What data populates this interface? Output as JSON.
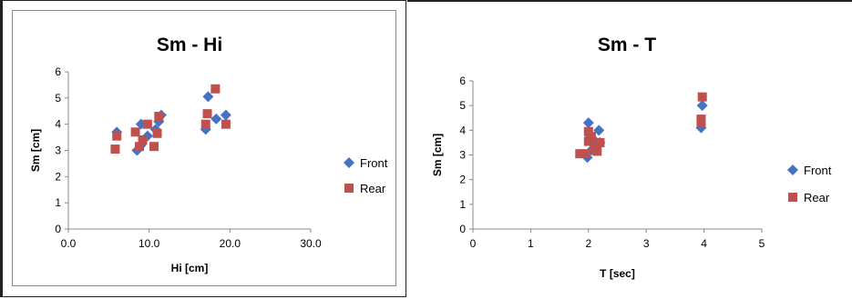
{
  "chart_data": [
    {
      "type": "scatter",
      "title": "Sm - Hi",
      "xlabel": "Hi [cm]",
      "ylabel": "Sm [cm]",
      "xlim": [
        0,
        30
      ],
      "ylim": [
        0,
        6
      ],
      "xticks": [
        "0.0",
        "10.0",
        "20.0",
        "30.0"
      ],
      "yticks": [
        "0",
        "1",
        "2",
        "3",
        "4",
        "5",
        "6"
      ],
      "legend_position": "right",
      "series": [
        {
          "name": "Front",
          "color": "#4472C4",
          "marker": "diamond",
          "points": [
            [
              6.0,
              3.7
            ],
            [
              8.5,
              3.0
            ],
            [
              9.0,
              3.2
            ],
            [
              9.0,
              4.0
            ],
            [
              9.8,
              3.55
            ],
            [
              10.8,
              3.8
            ],
            [
              11.2,
              4.1
            ],
            [
              11.5,
              4.35
            ],
            [
              17.0,
              3.8
            ],
            [
              17.3,
              5.05
            ],
            [
              18.3,
              4.2
            ],
            [
              19.5,
              4.35
            ]
          ]
        },
        {
          "name": "Rear",
          "color": "#C0504D",
          "marker": "square",
          "points": [
            [
              5.8,
              3.05
            ],
            [
              6.0,
              3.55
            ],
            [
              8.3,
              3.7
            ],
            [
              8.8,
              3.15
            ],
            [
              9.2,
              3.4
            ],
            [
              9.8,
              4.0
            ],
            [
              10.6,
              3.15
            ],
            [
              11.0,
              3.65
            ],
            [
              11.2,
              4.3
            ],
            [
              17.0,
              4.0
            ],
            [
              17.2,
              4.4
            ],
            [
              18.2,
              5.35
            ],
            [
              19.5,
              4.0
            ]
          ]
        }
      ]
    },
    {
      "type": "scatter",
      "title": "Sm - T",
      "xlabel": "T [sec]",
      "ylabel": "Sm [cm]",
      "xlim": [
        0,
        5
      ],
      "ylim": [
        0,
        6
      ],
      "xticks": [
        "0",
        "1",
        "2",
        "3",
        "4",
        "5"
      ],
      "yticks": [
        "0",
        "1",
        "2",
        "3",
        "4",
        "5",
        "6"
      ],
      "legend_position": "right",
      "series": [
        {
          "name": "Front",
          "color": "#4472C4",
          "marker": "diamond",
          "points": [
            [
              1.98,
              2.9
            ],
            [
              2.0,
              4.3
            ],
            [
              2.02,
              3.7
            ],
            [
              2.05,
              3.2
            ],
            [
              2.1,
              3.6
            ],
            [
              2.18,
              4.0
            ],
            [
              2.2,
              3.5
            ],
            [
              3.95,
              4.1
            ],
            [
              3.97,
              5.0
            ]
          ]
        },
        {
          "name": "Rear",
          "color": "#C0504D",
          "marker": "square",
          "points": [
            [
              1.85,
              3.05
            ],
            [
              1.95,
              3.05
            ],
            [
              2.0,
              3.55
            ],
            [
              2.0,
              3.95
            ],
            [
              2.05,
              3.75
            ],
            [
              2.1,
              3.3
            ],
            [
              2.15,
              3.15
            ],
            [
              2.2,
              3.5
            ],
            [
              3.95,
              4.3
            ],
            [
              3.95,
              4.45
            ],
            [
              3.97,
              5.35
            ]
          ]
        }
      ]
    }
  ]
}
